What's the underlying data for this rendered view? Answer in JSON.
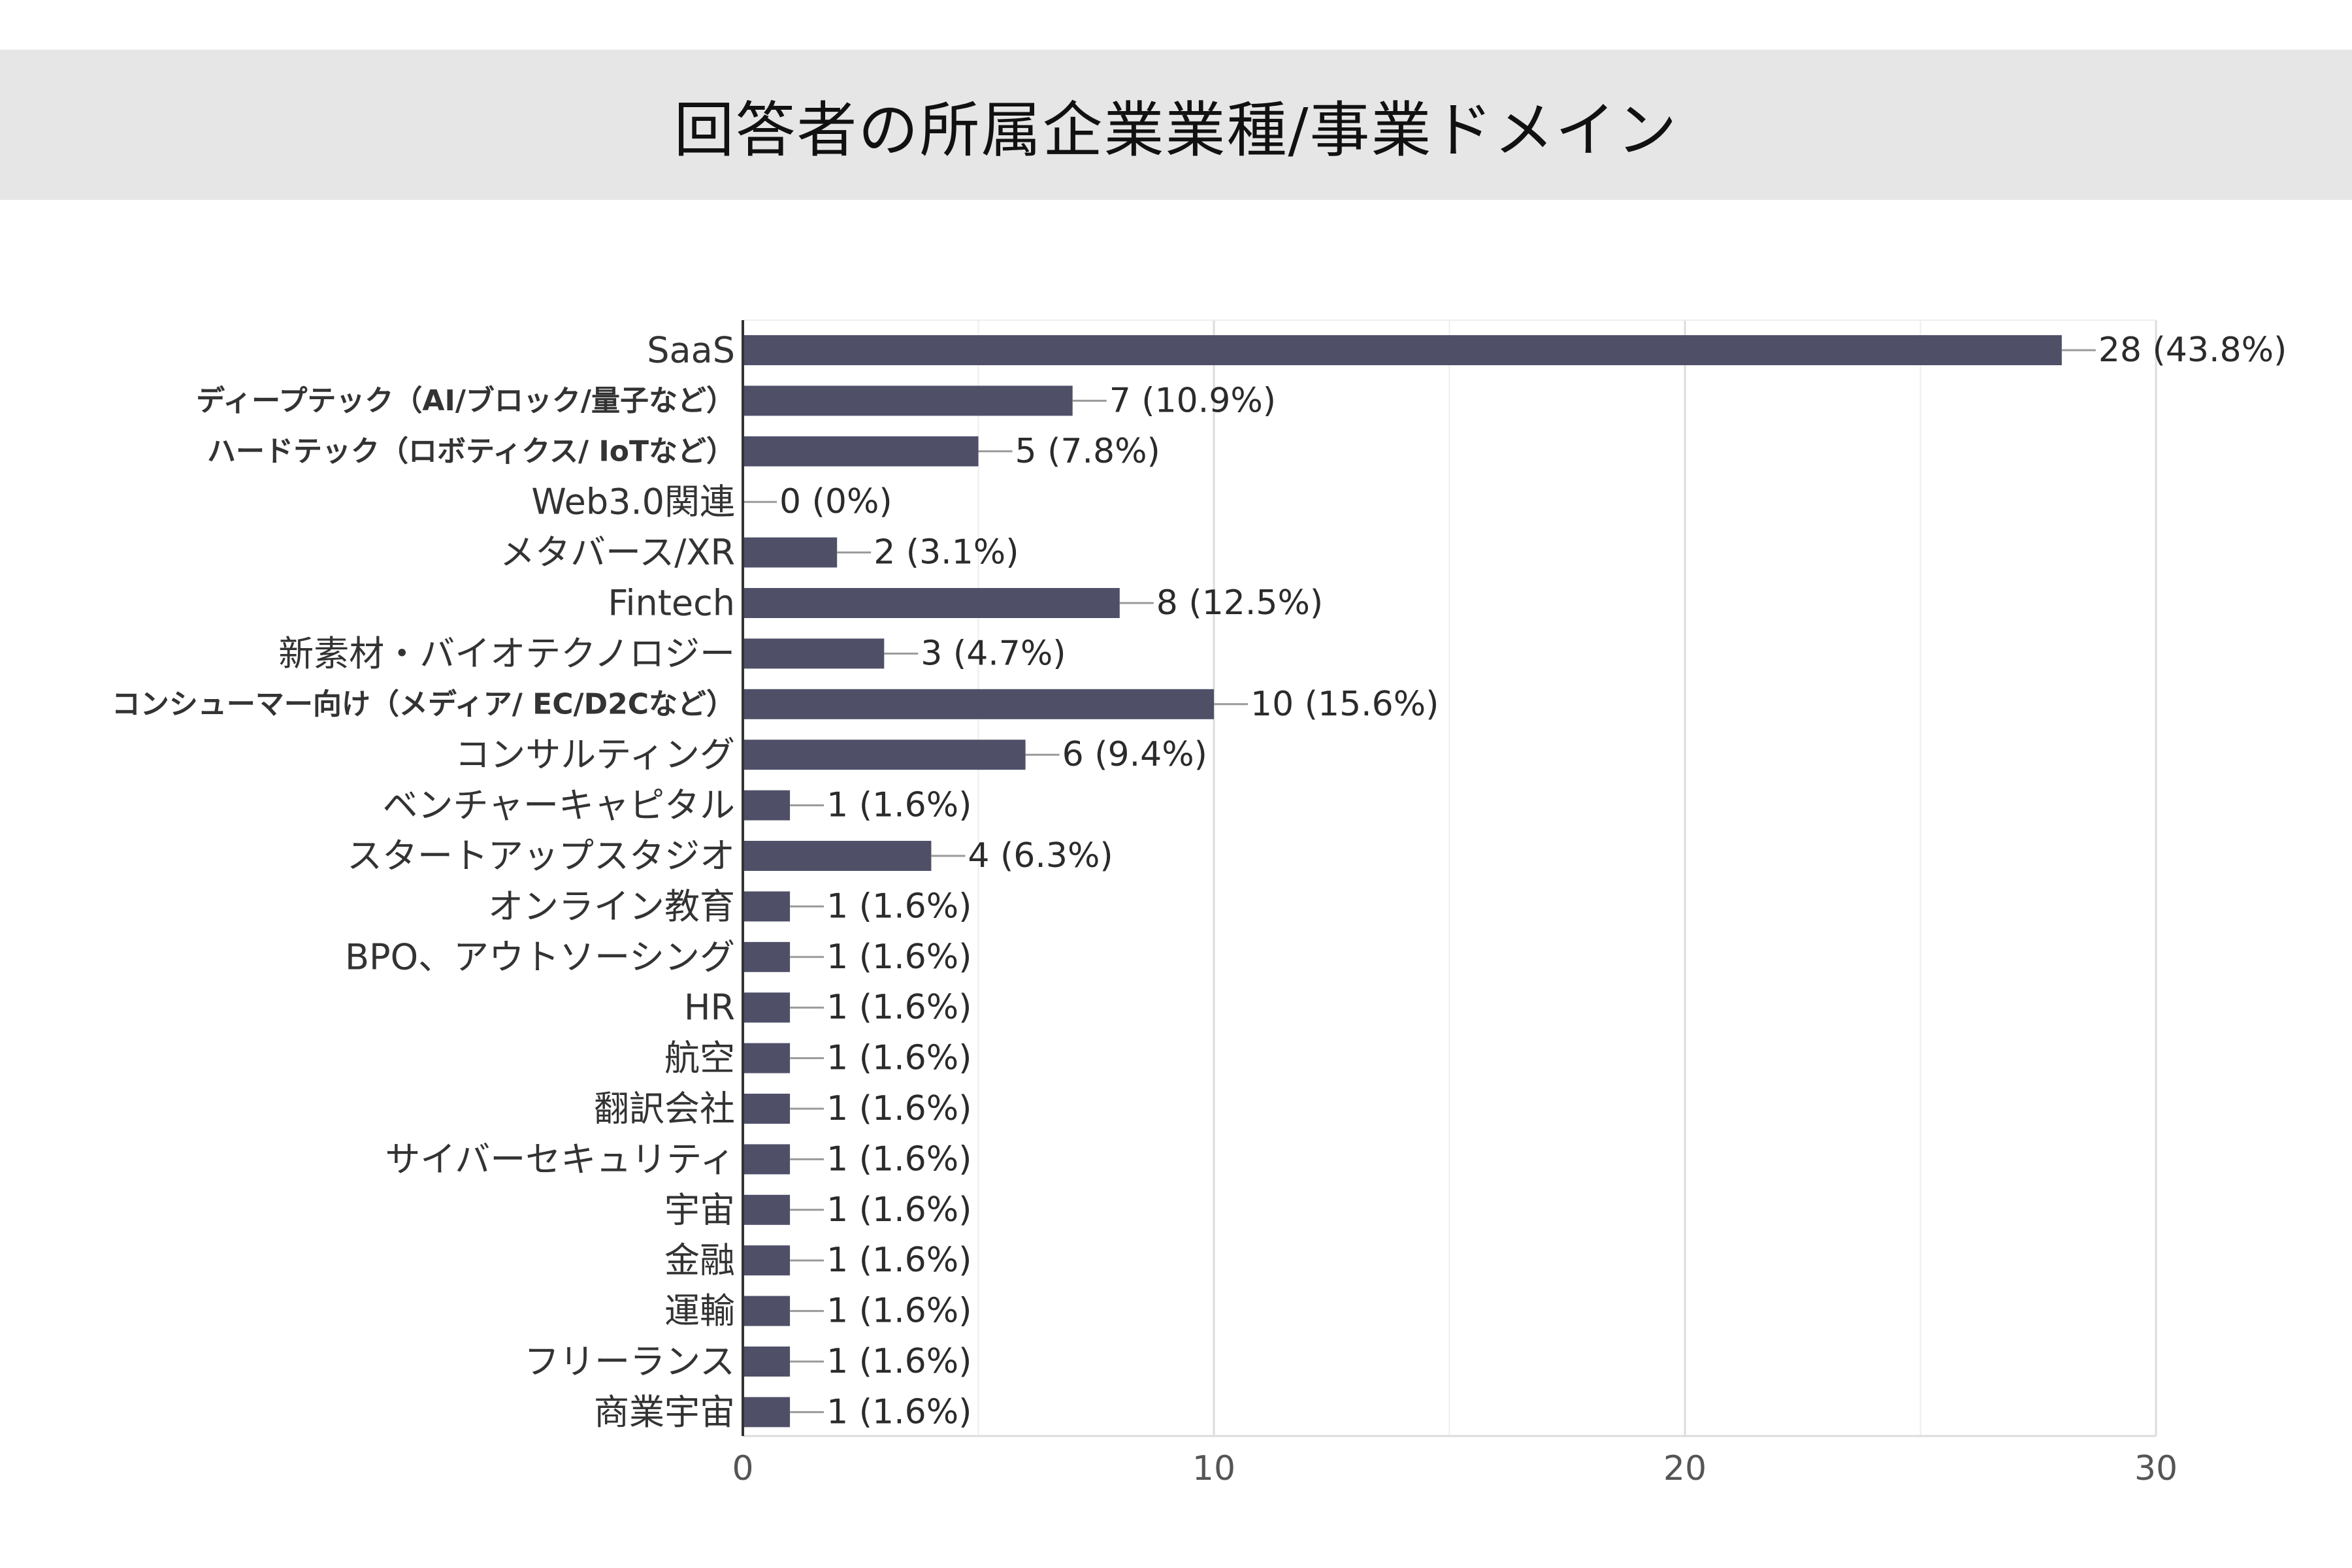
{
  "chart_data": {
    "type": "bar",
    "orientation": "horizontal",
    "title": "回答者の所属企業業種/事業ドメイン",
    "categories": [
      "SaaS",
      "ディープテック（AI/ブロック/量子など）",
      "ハードテック（ロボティクス/ IoTなど）",
      "Web3.0関連",
      "メタバース/XR",
      "Fintech",
      "新素材・バイオテクノロジー",
      "コンシューマー向け（メディア/ EC/D2Cなど）",
      "コンサルティング",
      "ベンチャーキャピタル",
      "スタートアップスタジオ",
      "オンライン教育",
      "BPO、アウトソーシング",
      "HR",
      "航空",
      "翻訳会社",
      "サイバーセキュリティ",
      "宇宙",
      "金融",
      "運輸",
      "フリーランス",
      "商業宇宙"
    ],
    "values": [
      28,
      7,
      5,
      0,
      2,
      8,
      3,
      10,
      6,
      1,
      4,
      1,
      1,
      1,
      1,
      1,
      1,
      1,
      1,
      1,
      1,
      1
    ],
    "data_labels": [
      "28 (43.8%)",
      "7 (10.9%)",
      "5 (7.8%)",
      "0 (0%)",
      "2 (3.1%)",
      "8 (12.5%)",
      "3 (4.7%)",
      "10 (15.6%)",
      "6 (9.4%)",
      "1 (1.6%)",
      "4 (6.3%)",
      "1 (1.6%)",
      "1 (1.6%)",
      "1 (1.6%)",
      "1 (1.6%)",
      "1 (1.6%)",
      "1 (1.6%)",
      "1 (1.6%)",
      "1 (1.6%)",
      "1 (1.6%)",
      "1 (1.6%)",
      "1 (1.6%)"
    ],
    "bold_categories": [
      1,
      2,
      7
    ],
    "xlim": [
      0,
      30
    ],
    "xticks": [
      0,
      10,
      20,
      30
    ],
    "xlabel": "",
    "ylabel": "",
    "grid": true,
    "legend": "none",
    "bar_color": "#4f5068"
  }
}
